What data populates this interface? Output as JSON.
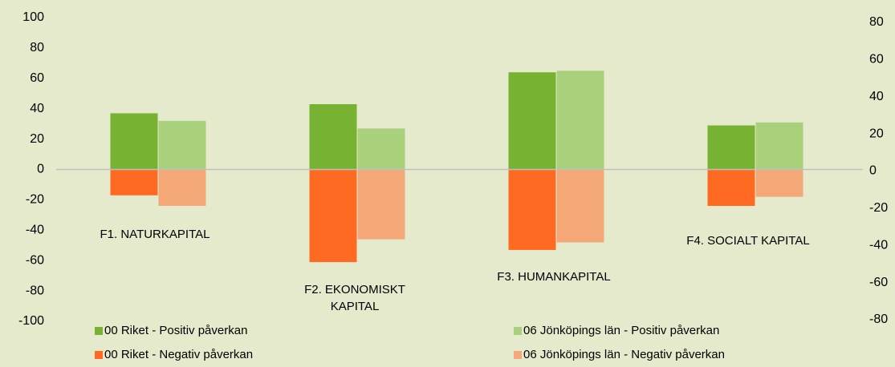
{
  "chart_data": {
    "type": "bar",
    "categories": [
      "F1. NATURKAPITAL",
      "F2. EKONOMISKT KAPITAL",
      "F3. HUMANKAPITAL",
      "F4. SOCIALT KAPITAL"
    ],
    "series": [
      {
        "name": "00 Riket - Positiv påverkan",
        "color": "#77b232",
        "values": [
          37,
          43,
          64,
          29
        ]
      },
      {
        "name": "06 Jönköpings län - Positiv påverkan",
        "color": "#a9d07a",
        "values": [
          32,
          27,
          65,
          31
        ]
      },
      {
        "name": "00 Riket - Negativ påverkan",
        "color": "#ff6a22",
        "values": [
          -17,
          -61,
          -53,
          -24
        ]
      },
      {
        "name": "06 Jönköpings län - Negativ påverkan",
        "color": "#f4a878",
        "values": [
          -24,
          -46,
          -48,
          -18
        ]
      }
    ],
    "ylim": [
      -100,
      100
    ],
    "yticks": [
      -100,
      -80,
      -60,
      -40,
      -20,
      0,
      20,
      40,
      60,
      80,
      100
    ],
    "y2lim": [
      -80,
      80
    ],
    "y2ticks": [
      -80,
      -60,
      -40,
      -20,
      0,
      20,
      40,
      60,
      80
    ],
    "grid": false
  }
}
